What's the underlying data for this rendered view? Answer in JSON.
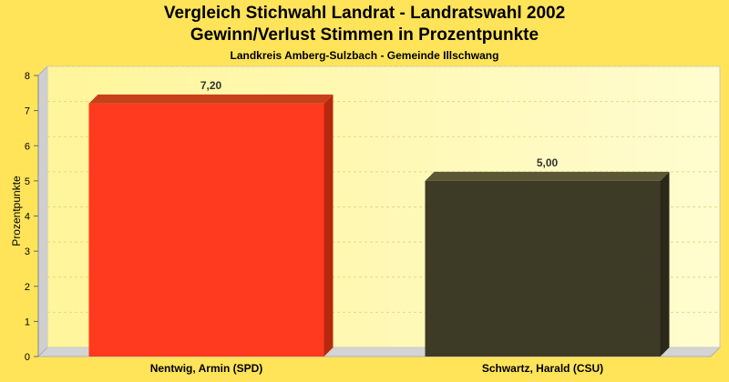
{
  "chart_data": {
    "type": "bar",
    "title": "Vergleich Stichwahl Landrat - Landratswahl 2002",
    "title_line2": "Gewinn/Verlust Stimmen in Prozentpunkte",
    "subtitle": "Landkreis Amberg-Sulzbach - Gemeinde Illschwang",
    "ylabel": "Prozentpunkte",
    "xlabel": "",
    "categories": [
      "Nentwig, Armin (SPD)",
      "Schwartz, Harald (CSU)"
    ],
    "values": [
      7.2,
      5.0
    ],
    "value_labels": [
      "7,20",
      "5,00"
    ],
    "ylim": [
      0,
      8
    ],
    "yticks": [
      "0",
      "1",
      "2",
      "3",
      "4",
      "5",
      "6",
      "7",
      "8"
    ],
    "grid": true,
    "legend": "none",
    "colors": {
      "bar_1": "#ff3a1f",
      "bar_2": "#3d3a26",
      "background": "#ffe45a",
      "plot_bg": "#fff8a6"
    }
  }
}
